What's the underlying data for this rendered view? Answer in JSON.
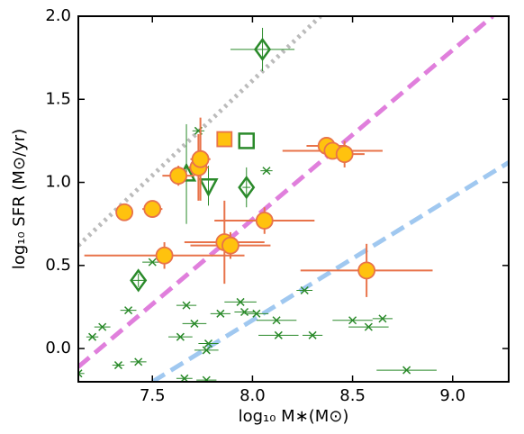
{
  "chart_data": {
    "type": "scatter",
    "xlabel": "log₁₀ M∗(M⊙)",
    "ylabel": "log₁₀ SFR (M⊙/yr)",
    "xlim": [
      7.13,
      9.28
    ],
    "ylim": [
      -0.2,
      2.0
    ],
    "xticks": [
      7.5,
      {
        "value": 8,
        "label": "8.0"
      },
      8.5,
      {
        "value": 9,
        "label": "9.0"
      }
    ],
    "yticks": [
      {
        "value": 0,
        "label": "0.0"
      },
      0.5,
      {
        "value": 1,
        "label": "1.0"
      },
      1.5,
      {
        "value": 2,
        "label": "2.0"
      }
    ],
    "series": [
      {
        "marker": "line",
        "style": "dotted",
        "color": "#bbbbbb",
        "x": [
          7.13,
          8.34
        ],
        "values": [
          0.62,
          2.0
        ]
      },
      {
        "marker": "line",
        "style": "dashed",
        "color": "#e07fdc",
        "x": [
          7.13,
          9.2
        ],
        "values": [
          -0.11,
          2.0
        ]
      },
      {
        "marker": "line",
        "style": "dashed",
        "color": "#a0c8f0",
        "x": [
          7.5,
          9.28
        ],
        "values": [
          -0.2,
          1.12
        ]
      },
      {
        "marker": "x",
        "color": "#2a8a2a",
        "x": [
          7.73,
          8.07,
          7.5,
          7.38,
          7.25,
          7.2,
          7.33,
          7.43,
          7.67,
          7.64,
          7.71,
          7.78,
          7.77,
          7.94,
          7.96,
          8.02,
          7.84,
          8.12,
          8.13,
          8.3,
          8.26,
          8.5,
          8.58,
          8.65,
          8.77,
          7.66,
          7.77,
          7.13
        ],
        "values": [
          1.31,
          1.07,
          0.52,
          0.23,
          0.13,
          0.07,
          -0.1,
          -0.08,
          0.26,
          0.07,
          0.15,
          0.03,
          -0.01,
          0.28,
          0.22,
          0.21,
          0.21,
          0.17,
          0.08,
          0.08,
          0.35,
          0.17,
          0.13,
          0.18,
          -0.13,
          -0.18,
          -0.19,
          -0.15
        ],
        "xerr": [
          0.03,
          0.03,
          0.05,
          0.04,
          0.04,
          0.03,
          0.03,
          0.04,
          0.05,
          0.06,
          0.06,
          0.05,
          0.06,
          0.08,
          0.05,
          0.06,
          0.05,
          0.1,
          0.1,
          0.05,
          0.04,
          0.1,
          0.1,
          0.05,
          0.15,
          0.04,
          0.05,
          0.03
        ]
      },
      {
        "marker": "triangle-up",
        "color": "#2a8a2a",
        "x": [
          7.67
        ],
        "values": [
          1.05
        ],
        "yerr": [
          0.3
        ]
      },
      {
        "marker": "triangle-down",
        "color": "#2a8a2a",
        "x": [
          7.78
        ],
        "values": [
          0.98
        ],
        "yerr": [
          0.12
        ]
      },
      {
        "marker": "square-open",
        "color": "#2a8a2a",
        "x": [
          7.97
        ],
        "values": [
          1.25
        ]
      },
      {
        "marker": "diamond",
        "color": "#2a8a2a",
        "x": [
          7.97,
          8.05,
          7.43
        ],
        "values": [
          0.97,
          1.8,
          0.41
        ],
        "xerr": [
          0.02,
          0.16,
          0.04
        ],
        "yerr": [
          0.12,
          0.13,
          0.04
        ]
      },
      {
        "marker": "circle",
        "color": "#ffc20e",
        "edge": "#e8734a",
        "x": [
          7.36,
          7.5,
          7.63,
          7.73,
          7.74,
          7.56,
          7.86,
          7.89,
          8.06,
          8.37,
          8.4,
          8.46,
          8.57
        ],
        "values": [
          0.82,
          0.84,
          1.04,
          1.09,
          1.14,
          0.56,
          0.64,
          0.62,
          0.77,
          1.22,
          1.19,
          1.17,
          0.47
        ],
        "xerr": [
          0.03,
          0.05,
          0.08,
          0.05,
          0.05,
          0.4,
          0.2,
          0.2,
          0.25,
          0.1,
          0.25,
          0.1,
          0.33
        ],
        "yerr": [
          0.02,
          0.02,
          0.06,
          0.2,
          0.25,
          0.08,
          0.25,
          0.08,
          0.08,
          0.02,
          0.05,
          0.08,
          0.16
        ]
      },
      {
        "marker": "square",
        "color": "#ffc20e",
        "edge": "#e8734a",
        "x": [
          7.86
        ],
        "values": [
          1.26
        ]
      }
    ]
  }
}
